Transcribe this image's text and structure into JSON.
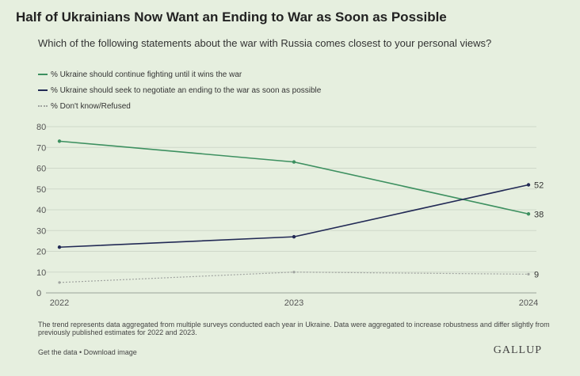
{
  "header": {
    "title": "Half of Ukrainians Now Want an Ending to War as Soon as Possible",
    "subtitle": "Which of the following statements about the war with Russia comes closest to your personal views?"
  },
  "chart_data": {
    "type": "line",
    "x": [
      "2022",
      "2023",
      "2024"
    ],
    "ylim": [
      0,
      80
    ],
    "yticks": [
      "0",
      "10",
      "20",
      "30",
      "40",
      "50",
      "60",
      "70",
      "80"
    ],
    "grid": true,
    "legend_position": "top-left",
    "series": [
      {
        "name": "% Ukraine should continue fighting until it wins the war",
        "values": [
          73,
          63,
          38
        ],
        "color": "#3d9060",
        "style": "solid",
        "end_label": "38"
      },
      {
        "name": "% Ukraine should seek to negotiate an ending to the war as soon as possible",
        "values": [
          22,
          27,
          52
        ],
        "color": "#222a55",
        "style": "solid",
        "end_label": "52"
      },
      {
        "name": "% Don't know/Refused",
        "values": [
          5,
          10,
          9
        ],
        "color": "#a0a4a0",
        "style": "dotted",
        "end_label": "9"
      }
    ]
  },
  "footer": {
    "note": "The trend represents data aggregated from multiple surveys conducted each year in Ukraine. Data were aggregated to increase robustness and differ slightly from previously published estimates for 2022 and 2023.",
    "links": "Get the data • Download image",
    "brand": "GALLUP"
  }
}
